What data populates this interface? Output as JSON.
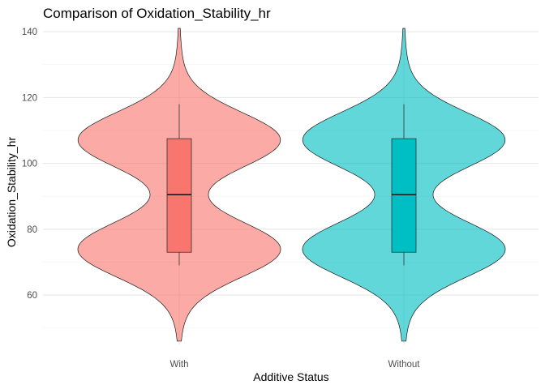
{
  "chart_data": {
    "type": "violin",
    "title": "Comparison of Oxidation_Stability_hr",
    "xlabel": "Additive Status",
    "ylabel": "Oxidation_Stability_hr",
    "ylim": [
      45,
      141
    ],
    "yticks": [
      60,
      80,
      100,
      120,
      140
    ],
    "grid": true,
    "categories": [
      "With",
      "Without"
    ],
    "groups": [
      {
        "name": "With",
        "color": "#F8766D",
        "violin_range": [
          46,
          141
        ],
        "box": {
          "whisker_low": 69,
          "q1": 73,
          "median": 90.5,
          "q3": 107.5,
          "whisker_high": 118
        }
      },
      {
        "name": "Without",
        "color": "#00BFC4",
        "violin_range": [
          46,
          141
        ],
        "box": {
          "whisker_low": 69,
          "q1": 73,
          "median": 90.5,
          "q3": 107.5,
          "whisker_high": 118
        }
      }
    ]
  }
}
